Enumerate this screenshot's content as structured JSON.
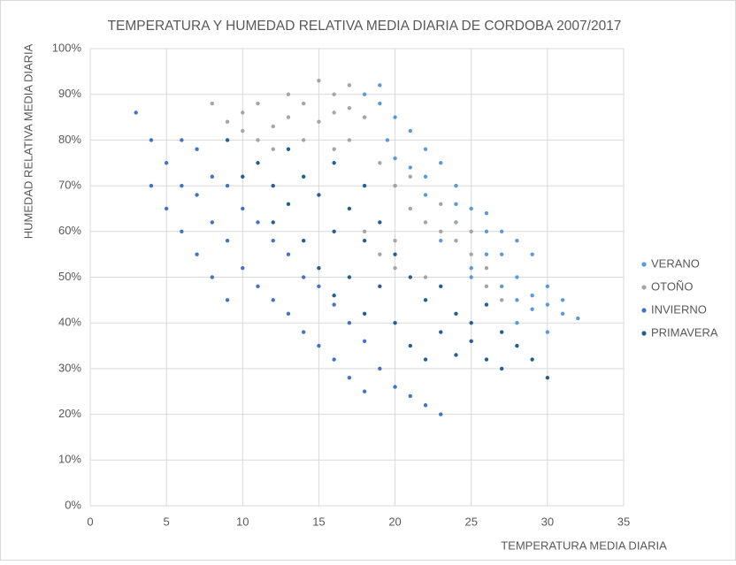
{
  "chart_data": {
    "type": "scatter",
    "title": "TEMPERATURA Y HUMEDAD RELATIVA MEDIA DIARIA DE CORDOBA  2007/2017",
    "x_label": "TEMPERATURA MEDIA DIARIA",
    "y_label": "HUMEDAD RELATIVA MEDIA DIARIA",
    "xlim": [
      0,
      35
    ],
    "xticks": [
      0,
      5,
      10,
      15,
      20,
      25,
      30,
      35
    ],
    "ylim": [
      0,
      100
    ],
    "yticks": [
      {
        "value": 0,
        "label": "0%"
      },
      {
        "value": 10,
        "label": "10%"
      },
      {
        "value": 20,
        "label": "20%"
      },
      {
        "value": 30,
        "label": "30%"
      },
      {
        "value": 40,
        "label": "40%"
      },
      {
        "value": 50,
        "label": "50%"
      },
      {
        "value": 60,
        "label": "60%"
      },
      {
        "value": 70,
        "label": "70%"
      },
      {
        "value": 80,
        "label": "80%"
      },
      {
        "value": 90,
        "label": "90%"
      },
      {
        "value": 100,
        "label": "100%"
      }
    ],
    "grid": true,
    "legend": "right",
    "series": [
      {
        "name": "VERANO",
        "color": "#5b9bd5",
        "x": [
          18,
          19,
          20,
          19.5,
          21,
          22,
          23,
          24,
          25,
          26,
          27,
          28,
          29,
          30,
          31,
          32,
          20,
          22,
          24,
          26,
          27,
          28,
          25,
          23,
          21,
          20,
          29,
          30,
          31,
          18,
          19,
          26,
          27,
          28,
          24,
          22,
          28,
          29,
          30,
          25
        ],
        "values": [
          90,
          88,
          85,
          80,
          82,
          78,
          75,
          70,
          65,
          60,
          55,
          50,
          46,
          44,
          42,
          41,
          70,
          68,
          62,
          55,
          48,
          45,
          52,
          58,
          74,
          76,
          55,
          48,
          45,
          85,
          92,
          64,
          60,
          58,
          66,
          72,
          40,
          43,
          38,
          50
        ]
      },
      {
        "name": "OTOÑO",
        "color": "#a5a5a5",
        "x": [
          8,
          9,
          10,
          11,
          12,
          13,
          14,
          15,
          16,
          17,
          18,
          17,
          16,
          19,
          20,
          21,
          22,
          23,
          24,
          25,
          26,
          19,
          20,
          18,
          22,
          12,
          11,
          10,
          14,
          15,
          16,
          17,
          21,
          23,
          24,
          25,
          26,
          27,
          20,
          13
        ],
        "values": [
          88,
          84,
          86,
          88,
          83,
          85,
          88,
          93,
          90,
          87,
          85,
          80,
          78,
          75,
          70,
          65,
          62,
          60,
          58,
          55,
          52,
          55,
          58,
          60,
          50,
          78,
          80,
          82,
          80,
          84,
          86,
          92,
          72,
          66,
          62,
          60,
          48,
          45,
          52,
          90
        ]
      },
      {
        "name": "INVIERNO",
        "color": "#4472c4",
        "x": [
          3,
          4,
          4,
          5,
          5,
          6,
          6,
          6,
          7,
          7,
          7,
          8,
          8,
          8,
          9,
          9,
          9,
          10,
          10,
          11,
          11,
          12,
          12,
          13,
          13,
          14,
          14,
          15,
          15,
          16,
          16,
          17,
          17,
          18,
          18,
          19,
          20,
          21,
          22,
          23
        ],
        "values": [
          86,
          80,
          70,
          75,
          65,
          80,
          70,
          60,
          78,
          68,
          55,
          72,
          62,
          50,
          70,
          58,
          45,
          65,
          52,
          62,
          48,
          58,
          45,
          55,
          42,
          50,
          38,
          48,
          35,
          44,
          32,
          40,
          28,
          36,
          25,
          30,
          26,
          24,
          22,
          20
        ]
      },
      {
        "name": "PRIMAVERA",
        "color": "#255e91",
        "x": [
          9,
          10,
          11,
          12,
          12,
          13,
          13,
          14,
          14,
          15,
          15,
          16,
          16,
          16,
          17,
          17,
          18,
          18,
          19,
          19,
          20,
          20,
          21,
          21,
          22,
          22,
          23,
          23,
          24,
          24,
          25,
          25,
          26,
          26,
          27,
          27,
          28,
          29,
          30,
          18
        ],
        "values": [
          80,
          72,
          75,
          70,
          62,
          78,
          66,
          72,
          58,
          68,
          52,
          75,
          60,
          46,
          65,
          50,
          58,
          42,
          62,
          48,
          55,
          40,
          50,
          35,
          45,
          32,
          48,
          38,
          42,
          33,
          40,
          36,
          44,
          32,
          38,
          30,
          35,
          32,
          28,
          70
        ]
      }
    ]
  }
}
